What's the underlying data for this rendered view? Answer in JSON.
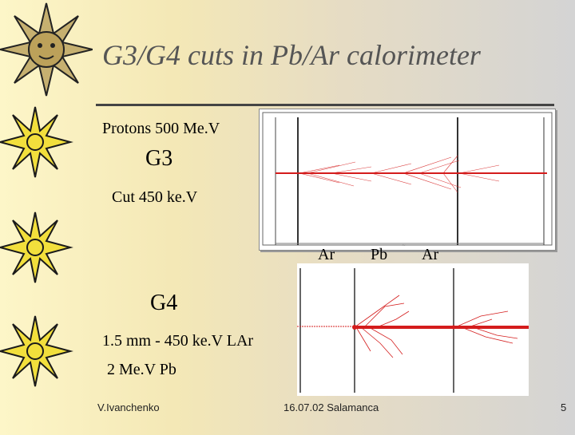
{
  "slide": {
    "title": "G3/G4 cuts in Pb/Ar calorimeter",
    "g3_block": {
      "line1": "Protons 500 Me.V",
      "heading": "G3",
      "line2": "Cut 450 ke.V"
    },
    "region_labels": [
      "Ar",
      "Pb",
      "Ar"
    ],
    "g4_block": {
      "heading": "G4",
      "line1": "1.5 mm  - 450 ke.V LAr",
      "line2": "2 Me.V   Pb"
    },
    "footer": {
      "author": "V.Ivanchenko",
      "event": "16.07.02 Salamanca",
      "page": "5"
    },
    "colors": {
      "track": "#d41c1c",
      "title": "#555555",
      "star": "#f2df3c"
    },
    "icons": [
      "sun-face-emblem-icon",
      "sun-decoration-icon"
    ]
  }
}
